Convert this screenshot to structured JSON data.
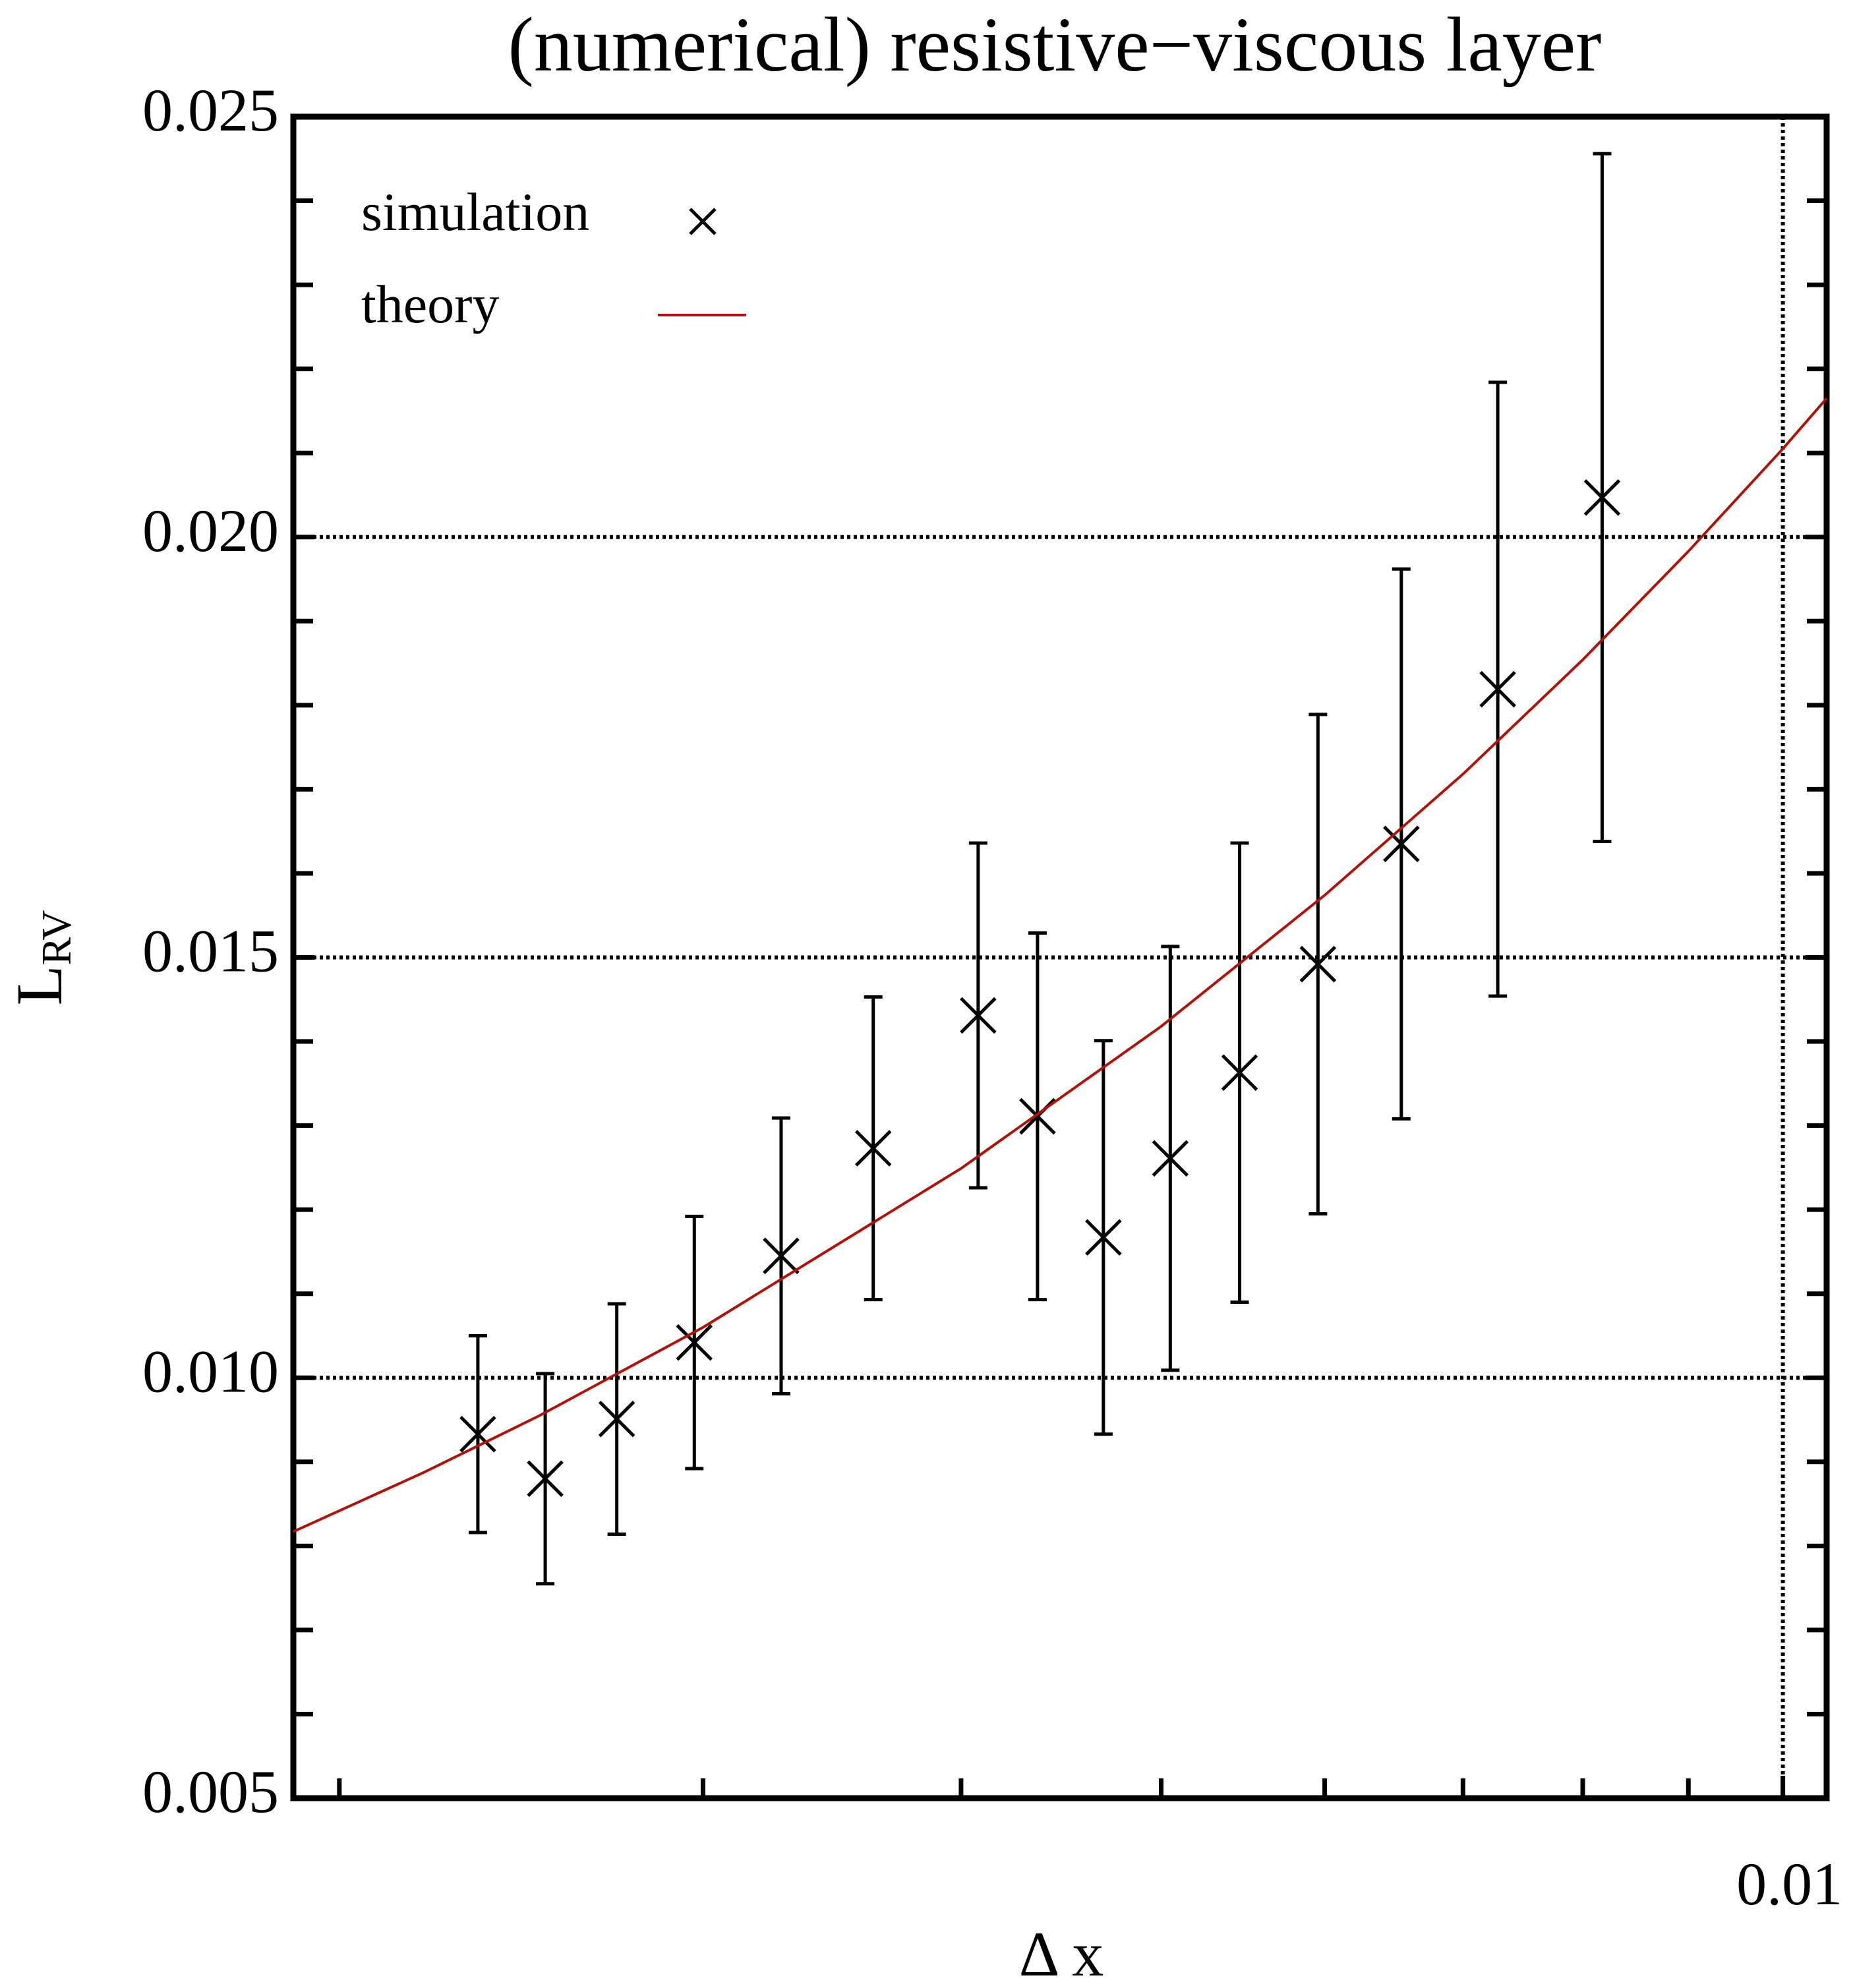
{
  "chart_data": {
    "type": "scatter",
    "title": "(numerical) resistive−viscous layer",
    "xlabel": "Δ x",
    "ylabel": {
      "text": "L",
      "subscript": "RV"
    },
    "xscale": "log",
    "xlim": [
      0.0019,
      0.0105
    ],
    "ylim": [
      0.005,
      0.025
    ],
    "xticks": [
      0.01
    ],
    "xminor_ticks": [
      0.002,
      0.003,
      0.004,
      0.005,
      0.006,
      0.007,
      0.008,
      0.009
    ],
    "yticks": [
      0.005,
      {
        "value": 0.01,
        "label": "0.010"
      },
      0.015,
      {
        "value": 0.02,
        "label": "0.020"
      },
      0.025
    ],
    "yminor_ticks": [
      0.006,
      0.007,
      0.008,
      0.009,
      0.011,
      0.012,
      0.013,
      0.014,
      0.016,
      0.017,
      0.018,
      0.019,
      0.021,
      0.022,
      0.023,
      0.024
    ],
    "grid": true,
    "legend": "upper left",
    "series": [
      {
        "name": "simulation",
        "color": "#000000",
        "marker": "x",
        "x": [
          0.002334,
          0.002516,
          0.002725,
          0.002971,
          0.003273,
          0.003627,
          0.004077,
          0.004356,
          0.004688,
          0.005051,
          0.005457,
          0.005955,
          0.006535,
          0.007277,
          0.008175
        ],
        "values": [
          0.00933,
          0.0088,
          0.00951,
          0.01042,
          0.01145,
          0.01273,
          0.01431,
          0.01311,
          0.01167,
          0.01261,
          0.01363,
          0.01492,
          0.01635,
          0.01819,
          0.02047
        ],
        "errors": [
          0.00117,
          0.00125,
          0.00137,
          0.0015,
          0.00164,
          0.0018,
          0.00205,
          0.00218,
          0.00234,
          0.00252,
          0.00273,
          0.00297,
          0.00327,
          0.00365,
          0.00409
        ]
      },
      {
        "name": "theory",
        "color": "#b0120a",
        "marker": "line",
        "x": [
          0.0019,
          0.0022,
          0.0025,
          0.003,
          0.004,
          0.005,
          0.006,
          0.007,
          0.008,
          0.009,
          0.01,
          0.0105
        ],
        "values": [
          0.00817,
          0.00888,
          0.00955,
          0.0106,
          0.01249,
          0.01418,
          0.01574,
          0.01718,
          0.01854,
          0.01983,
          0.02105,
          0.02165
        ]
      }
    ]
  }
}
